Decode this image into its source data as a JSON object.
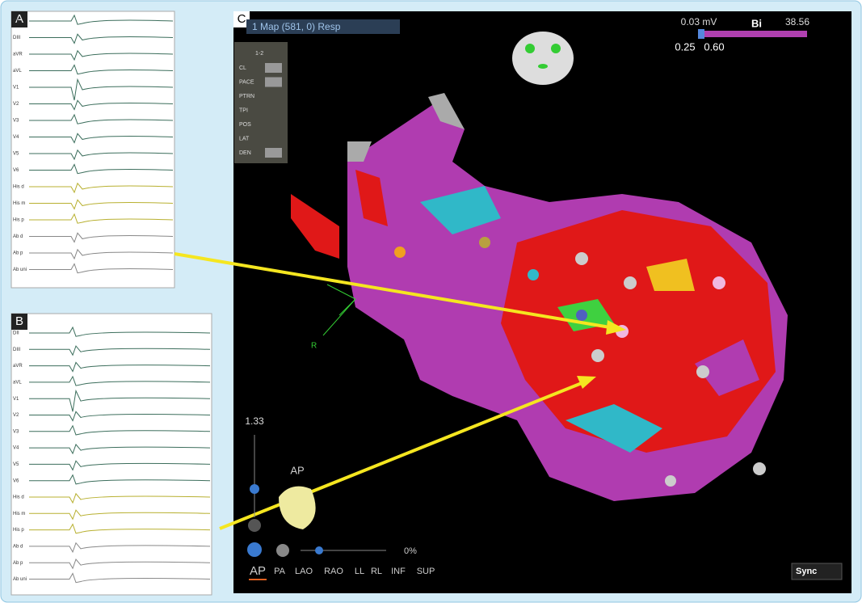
{
  "panels": {
    "a": {
      "label": "A",
      "leads": [
        "DII",
        "DIII",
        "aVR",
        "aVL",
        "V1",
        "V2",
        "V3",
        "V4",
        "V5",
        "V6",
        "His d",
        "His m",
        "His p",
        "Ab d",
        "Ab p",
        "Ab uni"
      ]
    },
    "b": {
      "label": "B",
      "leads": [
        "DII",
        "DIII",
        "aVR",
        "aVL",
        "V1",
        "V2",
        "V3",
        "V4",
        "V5",
        "V6",
        "His d",
        "His m",
        "His p",
        "Ab d",
        "Ab p",
        "Ab uni"
      ]
    },
    "c": {
      "label": "C",
      "map_title": "1 Map (581, 0) Resp",
      "sidebar": {
        "header": "1-2",
        "fields": [
          "CL",
          "PACE",
          "PTRN",
          "TPI",
          "POS",
          "LAT",
          "DEN"
        ]
      },
      "scale": {
        "min_label": "0.03 mV",
        "mode": "Bi",
        "max_label": "38.56",
        "low": "0.25",
        "high": "0.60"
      },
      "axis_label": "R",
      "zoom": "1.33",
      "view": "AP",
      "opacity": "0%",
      "views": [
        "AP",
        "PA",
        "LAO",
        "RAO",
        "LL",
        "RL",
        "INF",
        "SUP"
      ],
      "sync": "Sync"
    }
  }
}
